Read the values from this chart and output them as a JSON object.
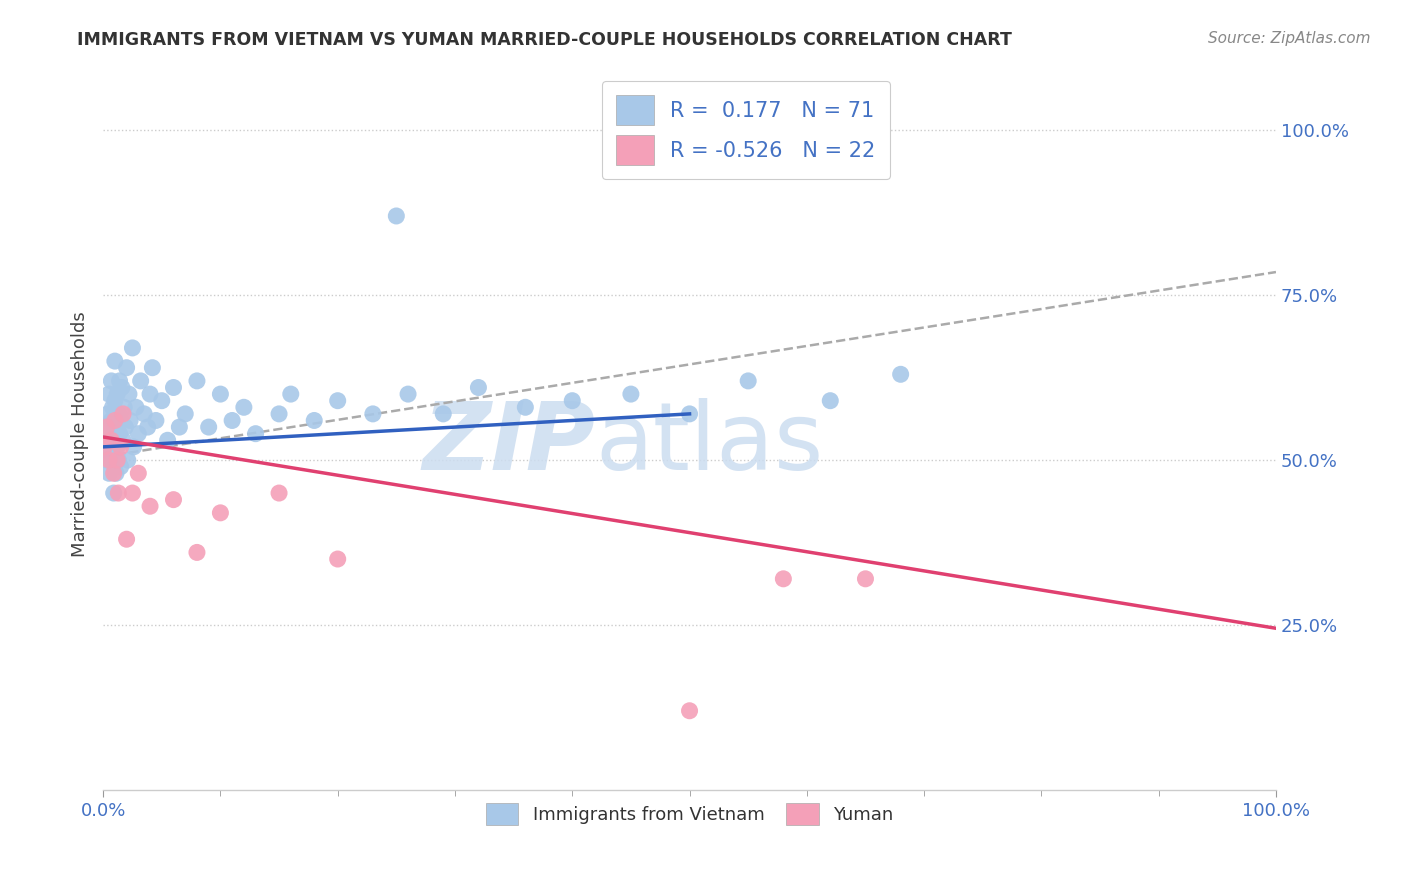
{
  "title": "IMMIGRANTS FROM VIETNAM VS YUMAN MARRIED-COUPLE HOUSEHOLDS CORRELATION CHART",
  "source": "Source: ZipAtlas.com",
  "ylabel": "Married-couple Households",
  "legend1_r": "0.177",
  "legend1_n": "71",
  "legend2_r": "-0.526",
  "legend2_n": "22",
  "blue_color": "#a8c8e8",
  "pink_color": "#f4a0b8",
  "blue_line_color": "#3060c0",
  "pink_line_color": "#e04070",
  "dash_line_color": "#aaaaaa",
  "background_color": "#ffffff",
  "watermark_color": "#ccddf0",
  "xlim": [
    0.0,
    1.0
  ],
  "ylim": [
    0.0,
    1.08
  ],
  "blue_trend": [
    0.52,
    0.57
  ],
  "pink_trend": [
    0.535,
    0.245
  ],
  "dash_trend": [
    0.505,
    0.785
  ],
  "blue_x": [
    0.001,
    0.002,
    0.003,
    0.004,
    0.005,
    0.005,
    0.006,
    0.007,
    0.007,
    0.008,
    0.008,
    0.009,
    0.009,
    0.01,
    0.01,
    0.01,
    0.011,
    0.011,
    0.012,
    0.012,
    0.013,
    0.013,
    0.014,
    0.014,
    0.015,
    0.015,
    0.016,
    0.017,
    0.018,
    0.019,
    0.02,
    0.021,
    0.022,
    0.023,
    0.025,
    0.026,
    0.028,
    0.03,
    0.032,
    0.035,
    0.038,
    0.04,
    0.042,
    0.045,
    0.05,
    0.055,
    0.06,
    0.065,
    0.07,
    0.08,
    0.09,
    0.1,
    0.11,
    0.12,
    0.13,
    0.15,
    0.16,
    0.18,
    0.2,
    0.23,
    0.26,
    0.29,
    0.32,
    0.36,
    0.4,
    0.45,
    0.5,
    0.55,
    0.62,
    0.68,
    0.25
  ],
  "blue_y": [
    0.52,
    0.55,
    0.5,
    0.57,
    0.6,
    0.48,
    0.53,
    0.56,
    0.62,
    0.5,
    0.58,
    0.45,
    0.54,
    0.52,
    0.59,
    0.65,
    0.48,
    0.55,
    0.52,
    0.6,
    0.57,
    0.5,
    0.54,
    0.62,
    0.49,
    0.56,
    0.61,
    0.53,
    0.58,
    0.55,
    0.64,
    0.5,
    0.6,
    0.56,
    0.67,
    0.52,
    0.58,
    0.54,
    0.62,
    0.57,
    0.55,
    0.6,
    0.64,
    0.56,
    0.59,
    0.53,
    0.61,
    0.55,
    0.57,
    0.62,
    0.55,
    0.6,
    0.56,
    0.58,
    0.54,
    0.57,
    0.6,
    0.56,
    0.59,
    0.57,
    0.6,
    0.57,
    0.61,
    0.58,
    0.59,
    0.6,
    0.57,
    0.62,
    0.59,
    0.63,
    0.87
  ],
  "pink_x": [
    0.001,
    0.003,
    0.005,
    0.007,
    0.009,
    0.01,
    0.012,
    0.013,
    0.015,
    0.017,
    0.02,
    0.025,
    0.03,
    0.04,
    0.06,
    0.08,
    0.1,
    0.15,
    0.2,
    0.58,
    0.65,
    0.5
  ],
  "pink_y": [
    0.52,
    0.55,
    0.5,
    0.53,
    0.48,
    0.56,
    0.5,
    0.45,
    0.52,
    0.57,
    0.38,
    0.45,
    0.48,
    0.43,
    0.44,
    0.36,
    0.42,
    0.45,
    0.35,
    0.32,
    0.32,
    0.12
  ]
}
